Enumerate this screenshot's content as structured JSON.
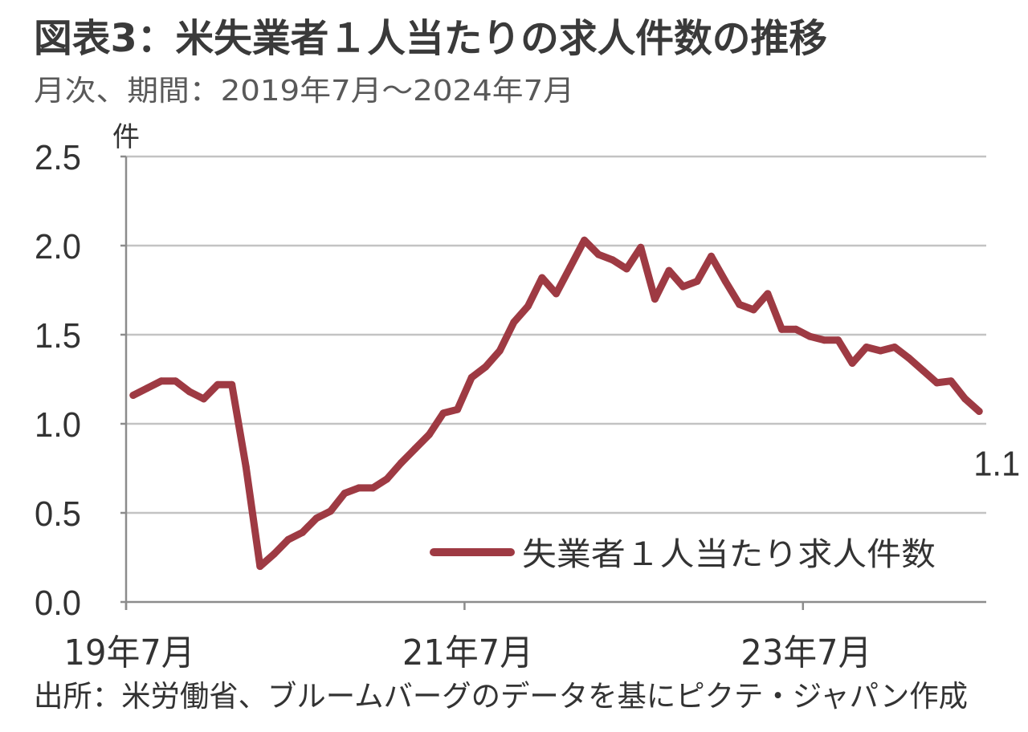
{
  "chart_data": {
    "type": "line",
    "title": "図表3：米失業者１人当たりの求人件数の推移",
    "subtitle": "月次、期間：2019年7月～2024年7月",
    "ylabel": "件",
    "ylim": [
      0,
      2.5
    ],
    "yticks": [
      0,
      0.5,
      1.0,
      1.5,
      2.0,
      2.5
    ],
    "ytick_labels": [
      "0.0",
      "0.5",
      "1.0",
      "1.5",
      "2.0",
      "2.5"
    ],
    "xticks": [
      {
        "x": "2019-07",
        "label": "19年7月"
      },
      {
        "x": "2021-07",
        "label": "21年7月"
      },
      {
        "x": "2023-07",
        "label": "23年7月"
      }
    ],
    "grid": true,
    "legend": "lower-right",
    "series": [
      {
        "name": "失業者１人当たり求人件数",
        "color": "#9E3A43",
        "x": [
          "2019-07",
          "2019-08",
          "2019-09",
          "2019-10",
          "2019-11",
          "2019-12",
          "2020-01",
          "2020-02",
          "2020-03",
          "2020-04",
          "2020-05",
          "2020-06",
          "2020-07",
          "2020-08",
          "2020-09",
          "2020-10",
          "2020-11",
          "2020-12",
          "2021-01",
          "2021-02",
          "2021-03",
          "2021-04",
          "2021-05",
          "2021-06",
          "2021-07",
          "2021-08",
          "2021-09",
          "2021-10",
          "2021-11",
          "2021-12",
          "2022-01",
          "2022-02",
          "2022-03",
          "2022-04",
          "2022-05",
          "2022-06",
          "2022-07",
          "2022-08",
          "2022-09",
          "2022-10",
          "2022-11",
          "2022-12",
          "2023-01",
          "2023-02",
          "2023-03",
          "2023-04",
          "2023-05",
          "2023-06",
          "2023-07",
          "2023-08",
          "2023-09",
          "2023-10",
          "2023-11",
          "2023-12",
          "2024-01",
          "2024-02",
          "2024-03",
          "2024-04",
          "2024-05",
          "2024-06",
          "2024-07"
        ],
        "y": [
          1.16,
          1.2,
          1.24,
          1.24,
          1.18,
          1.14,
          1.22,
          1.22,
          0.76,
          0.2,
          0.27,
          0.35,
          0.39,
          0.47,
          0.51,
          0.61,
          0.64,
          0.64,
          0.69,
          0.78,
          0.86,
          0.94,
          1.06,
          1.08,
          1.26,
          1.32,
          1.41,
          1.57,
          1.66,
          1.82,
          1.73,
          1.88,
          2.03,
          1.95,
          1.92,
          1.87,
          1.99,
          1.7,
          1.86,
          1.77,
          1.8,
          1.94,
          1.8,
          1.67,
          1.64,
          1.73,
          1.53,
          1.53,
          1.49,
          1.47,
          1.47,
          1.34,
          1.43,
          1.41,
          1.43,
          1.37,
          1.3,
          1.23,
          1.24,
          1.14,
          1.07
        ]
      }
    ],
    "annotations": [
      {
        "x": "2024-07",
        "text": "1.1"
      }
    ]
  },
  "source": "出所：米労働省、ブルームバーグのデータを基にピクテ・ジャパン作成"
}
